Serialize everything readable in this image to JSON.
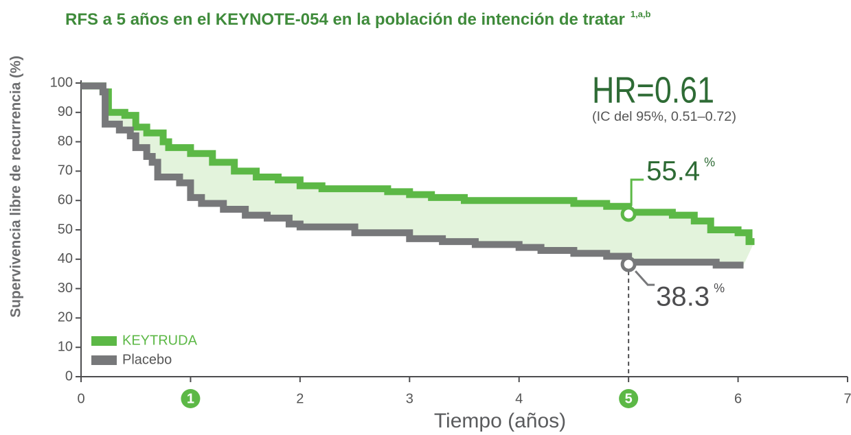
{
  "chart_data": {
    "type": "line",
    "title": "RFS a 5 años en el KEYNOTE-054 en la población de intención de tratar",
    "title_superscript": "1,a,b",
    "x_label": "Tiempo (años)",
    "y_label": "Supervivencia libre de recurrencia (%)",
    "xlim": [
      0,
      7
    ],
    "xticks": [
      0,
      1,
      2,
      3,
      4,
      5,
      6,
      7
    ],
    "highlighted_xticks": [
      1,
      5
    ],
    "ylim": [
      0,
      100
    ],
    "yticks": [
      0,
      10,
      20,
      30,
      40,
      50,
      60,
      70,
      80,
      90,
      100
    ],
    "step": true,
    "legend": "bottom-left",
    "hr_label": "HR=0.61",
    "ci_label": "(IC del 95%, 0.51–0.72)",
    "series": [
      {
        "name": "KEYTRUDA",
        "color": "#5cb846",
        "x": [
          0,
          0.1,
          0.2,
          0.25,
          0.4,
          0.5,
          0.6,
          0.75,
          0.8,
          1,
          1.2,
          1.4,
          1.6,
          1.8,
          2,
          2.2,
          2.5,
          2.8,
          3,
          3.2,
          3.5,
          4,
          4.5,
          4.8,
          5,
          5.4,
          5.6,
          5.75,
          6,
          6.1,
          6.15
        ],
        "values": [
          99,
          99,
          97,
          90,
          89,
          85,
          83,
          80,
          78,
          76,
          73,
          70,
          68,
          67,
          65,
          64,
          64,
          63,
          62,
          61,
          60,
          60,
          59,
          58,
          56,
          55,
          53,
          50,
          49,
          46,
          46
        ],
        "landmark": {
          "x": 5,
          "value": 55.4,
          "unit": "%"
        }
      },
      {
        "name": "Placebo",
        "color": "#77787a",
        "x": [
          0,
          0.1,
          0.2,
          0.22,
          0.35,
          0.45,
          0.5,
          0.6,
          0.65,
          0.7,
          0.9,
          1,
          1.1,
          1.3,
          1.5,
          1.7,
          1.9,
          2,
          2.5,
          3,
          3.3,
          3.6,
          4,
          4.2,
          4.5,
          4.8,
          5,
          5.2,
          5.75,
          5.8,
          6.05
        ],
        "values": [
          99,
          99,
          97,
          86,
          84,
          82,
          78,
          75,
          73,
          68,
          66,
          61,
          59,
          57,
          55,
          54,
          52,
          51,
          49,
          47,
          46,
          45,
          44,
          43,
          42,
          41,
          39,
          39,
          39,
          38,
          38
        ],
        "landmark": {
          "x": 5,
          "value": 38.3,
          "unit": "%"
        }
      }
    ]
  }
}
